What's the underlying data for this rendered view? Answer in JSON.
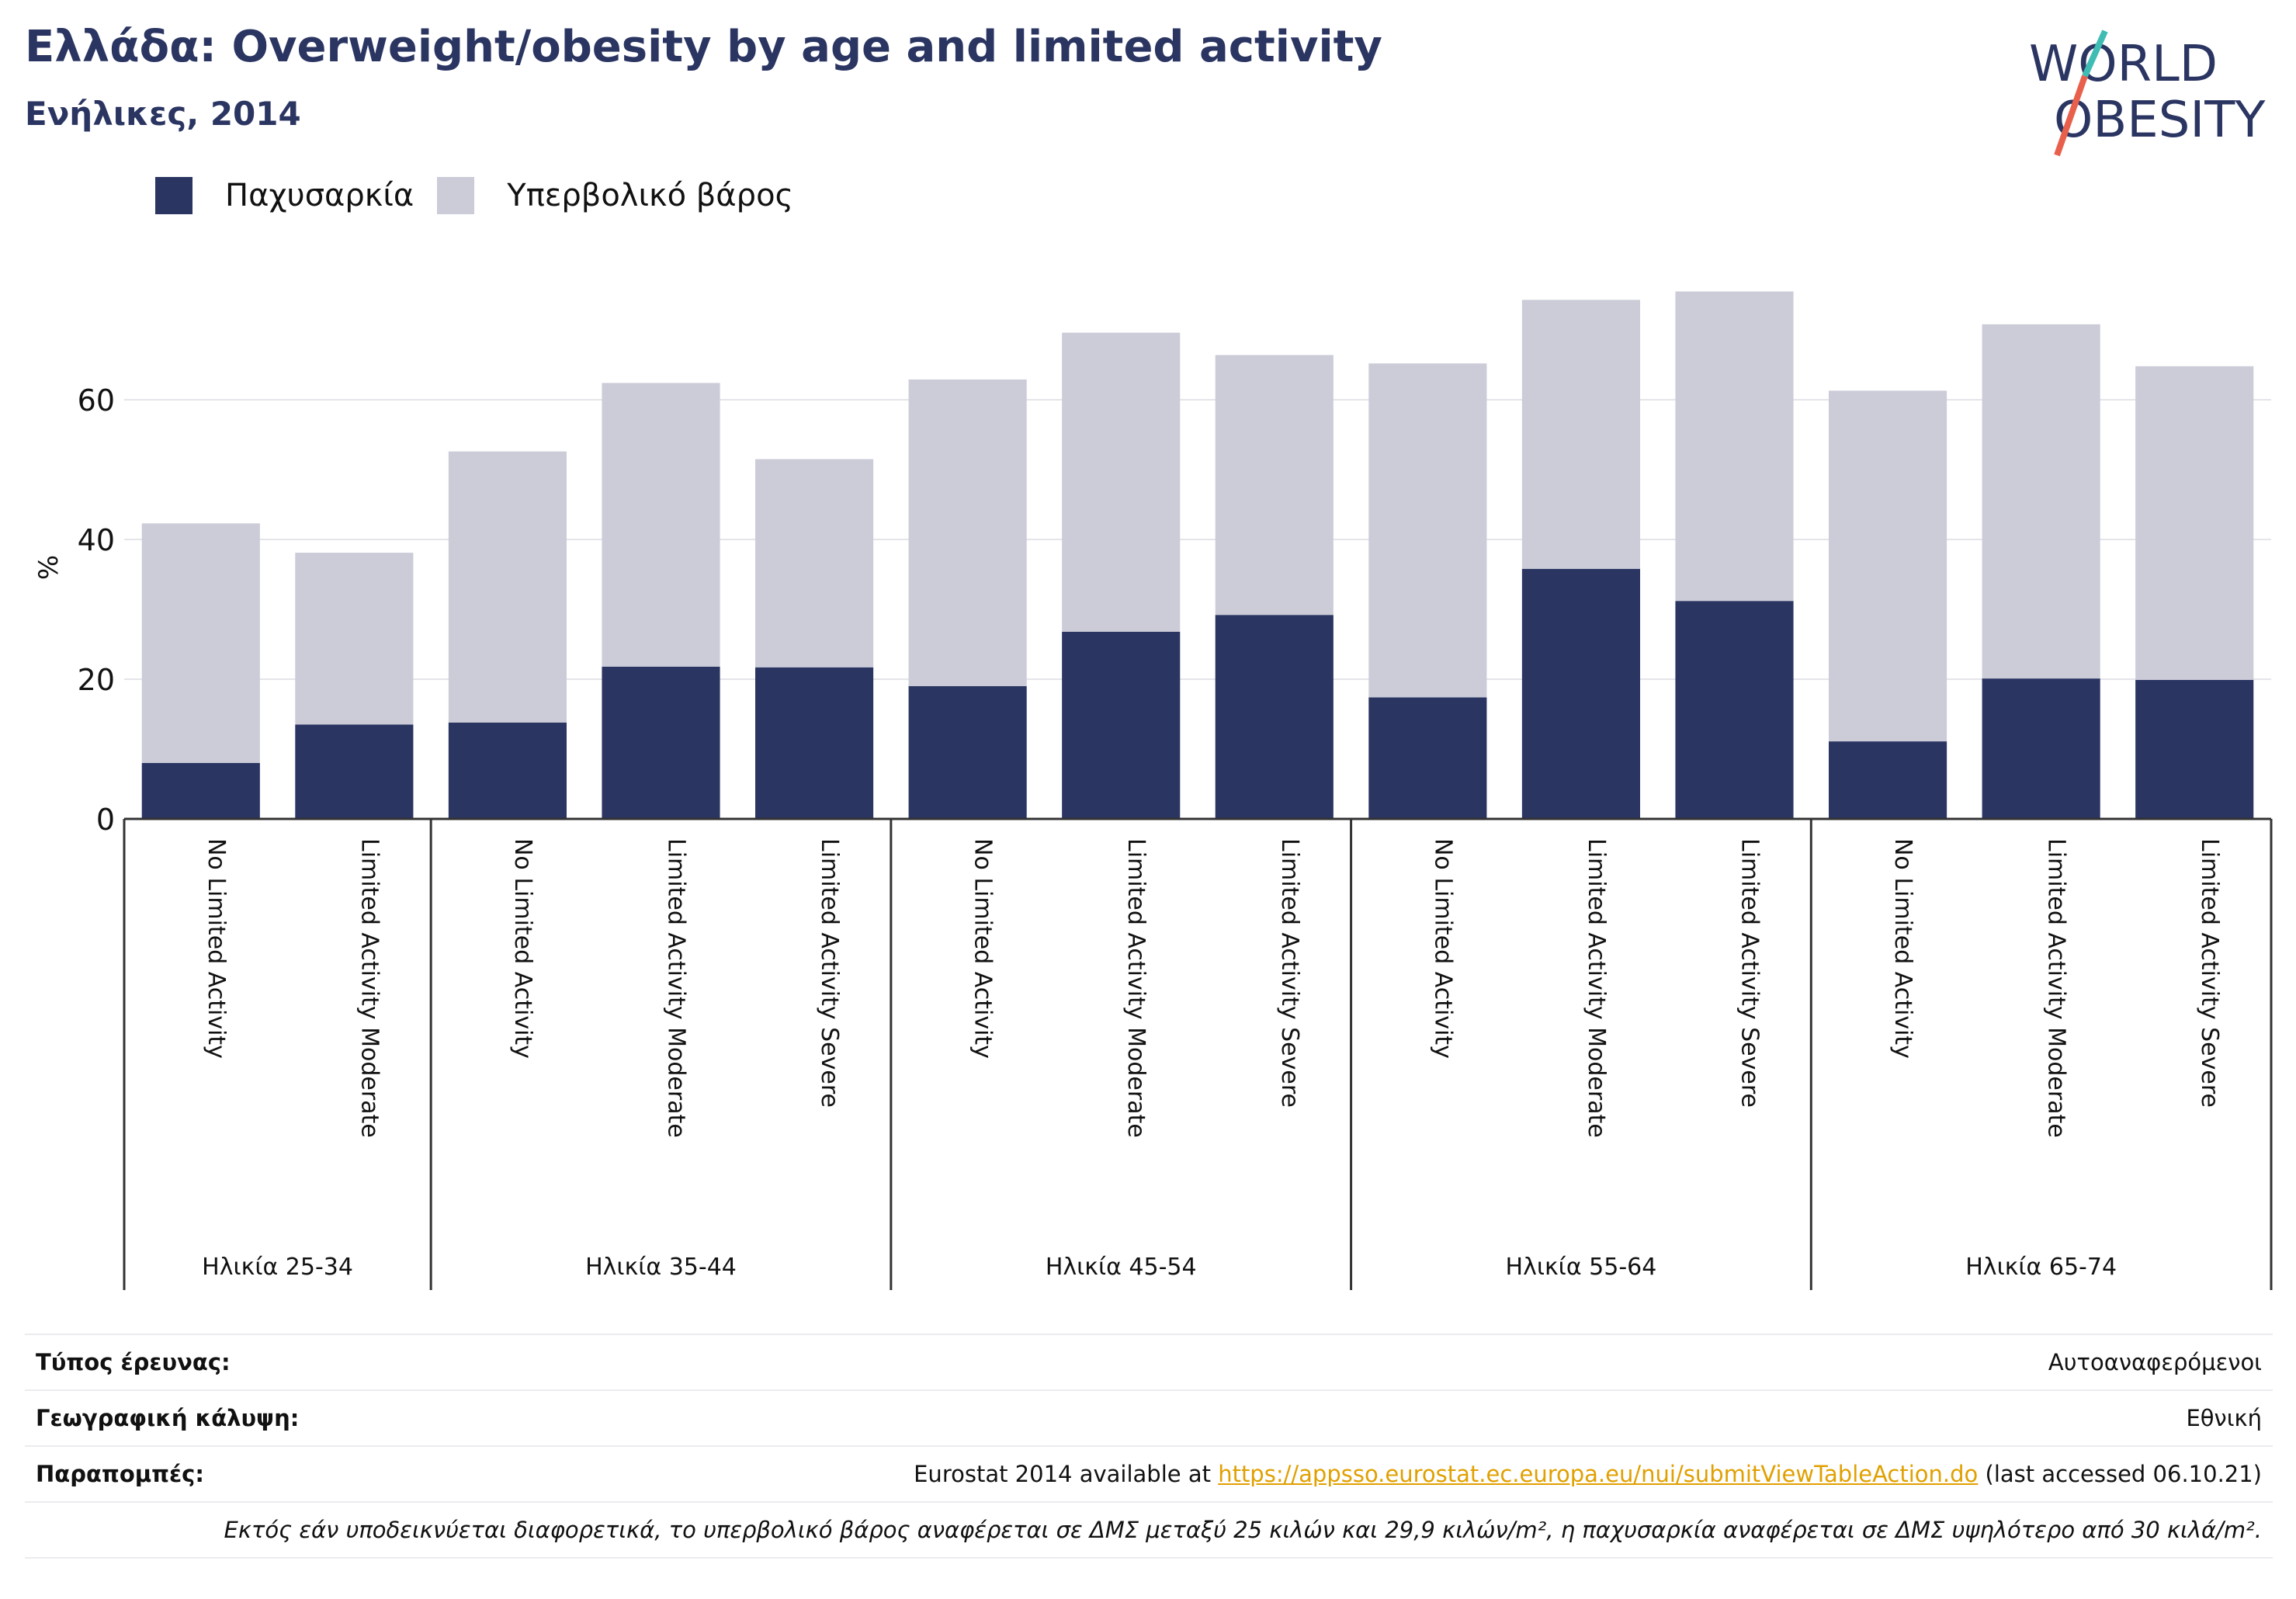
{
  "header": {
    "title": "Ελλάδα: Overweight/obesity by age and limited activity",
    "subtitle": "Ενήλικες, 2014"
  },
  "logo": {
    "line1": "WORLD",
    "line2": "OBESITY"
  },
  "colors": {
    "obesity": "#2b3562",
    "overweight": "#cbccd8",
    "accent_teal": "#3fbcb4",
    "accent_red": "#e8604c",
    "link": "#e0a000"
  },
  "legend": [
    {
      "label": "Παχυσαρκία",
      "color": "#2b3562"
    },
    {
      "label": "Υπερβολικό βάρος",
      "color": "#cbccd8"
    }
  ],
  "chart_data": {
    "type": "bar",
    "stacked": true,
    "ylabel": "%",
    "ylim": [
      0,
      80
    ],
    "yticks": [
      0,
      20,
      40,
      60
    ],
    "grid": true,
    "legend_position": "top-left",
    "groups": [
      {
        "label": "Ηλικία 25-34",
        "categories": [
          "No Limited Activity",
          "Limited Activity Moderate"
        ]
      },
      {
        "label": "Ηλικία 35-44",
        "categories": [
          "No Limited Activity",
          "Limited Activity Moderate",
          "Limited Activity Severe"
        ]
      },
      {
        "label": "Ηλικία 45-54",
        "categories": [
          "No Limited Activity",
          "Limited Activity Moderate",
          "Limited Activity Severe"
        ]
      },
      {
        "label": "Ηλικία 55-64",
        "categories": [
          "No Limited Activity",
          "Limited Activity Moderate",
          "Limited Activity Severe"
        ]
      },
      {
        "label": "Ηλικία 65-74",
        "categories": [
          "No Limited Activity",
          "Limited Activity Moderate",
          "Limited Activity Severe"
        ]
      }
    ],
    "series": [
      {
        "name": "Παχυσαρκία",
        "values": [
          8.0,
          13.5,
          13.8,
          21.8,
          21.7,
          19.0,
          26.8,
          29.2,
          17.4,
          35.8,
          31.2,
          11.1,
          20.1,
          19.9
        ]
      },
      {
        "name": "Υπερβολικό βάρος",
        "values": [
          34.3,
          24.6,
          38.8,
          40.6,
          29.8,
          43.9,
          42.8,
          37.2,
          47.8,
          38.5,
          44.3,
          50.2,
          50.7,
          44.9
        ]
      }
    ]
  },
  "meta": {
    "survey_type_label": "Τύπος έρευνας:",
    "survey_type_value": "Αυτοαναφερόμενοι",
    "coverage_label": "Γεωγραφική κάλυψη:",
    "coverage_value": "Εθνική",
    "references_label": "Παραπομπές:",
    "references_prefix": "Eurostat 2014 available at ",
    "references_link": "https://appsso.eurostat.ec.europa.eu/nui/submitViewTableAction.do",
    "references_suffix": " (last accessed 06.10.21)",
    "footnote": "Εκτός εάν υποδεικνύεται διαφορετικά, το υπερβολικό βάρος αναφέρεται σε ΔΜΣ μεταξύ 25 κιλών και 29,9 κιλών/m², η παχυσαρκία αναφέρεται σε ΔΜΣ υψηλότερο από 30 κιλά/m²."
  }
}
